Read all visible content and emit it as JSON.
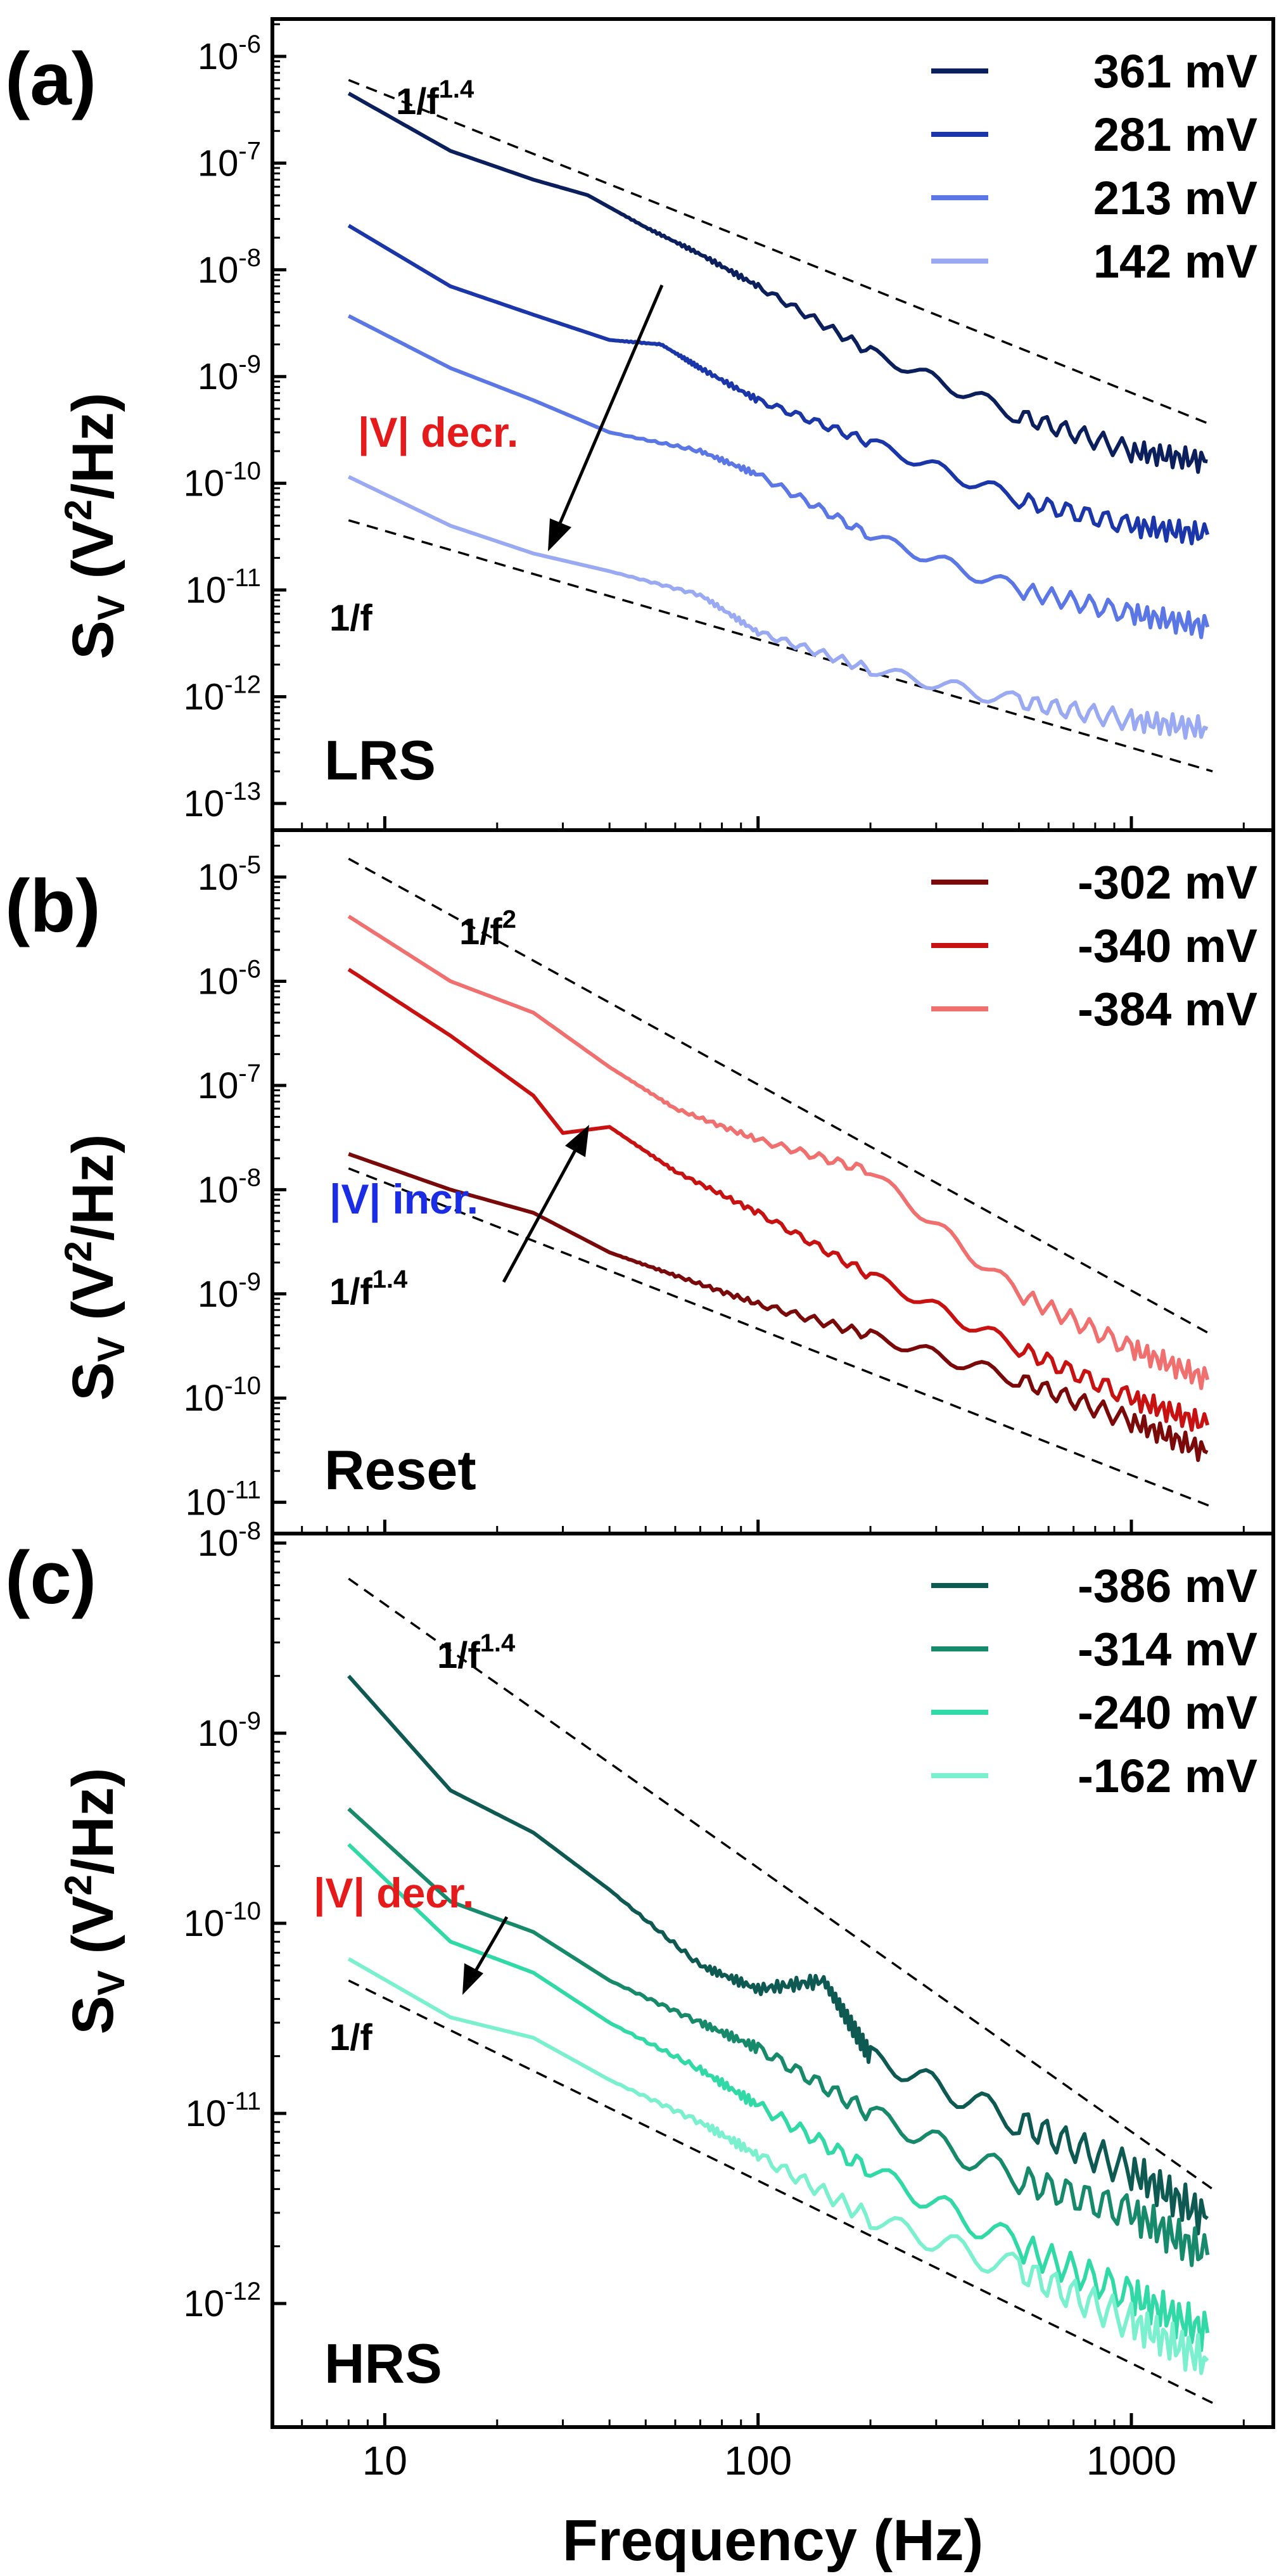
{
  "xlabel": "Frequency (Hz)",
  "xticks": [
    "10",
    "100",
    "1000"
  ],
  "colors": {
    "a": [
      "#0b1f5c",
      "#1a36a8",
      "#5b77e6",
      "#9aaaf2"
    ],
    "b": [
      "#7a0a0a",
      "#c81212",
      "#f07070"
    ],
    "c": [
      "#0e5a52",
      "#168a6a",
      "#30d9a6",
      "#7af0cf"
    ],
    "annot_decr": "#e51a1a",
    "annot_incr": "#1a2de5"
  },
  "panels": [
    {
      "letter": "(a)",
      "ylabel_main": "S",
      "ylabel_sub": "V",
      "ylabel_unit_pre": " (V",
      "ylabel_unit_sup": "2",
      "ylabel_unit_post": "/Hz)",
      "state": "LRS",
      "yticks": [
        {
          "base": "10",
          "exp": "-6"
        },
        {
          "base": "10",
          "exp": "-7"
        },
        {
          "base": "10",
          "exp": "-8"
        },
        {
          "base": "10",
          "exp": "-9"
        },
        {
          "base": "10",
          "exp": "-10"
        },
        {
          "base": "10",
          "exp": "-11"
        },
        {
          "base": "10",
          "exp": "-12"
        },
        {
          "base": "10",
          "exp": "-13"
        }
      ],
      "ref_upper": {
        "base": "1/f",
        "exp": "1.4"
      },
      "ref_lower": {
        "base": "1/f",
        "exp": ""
      },
      "annotation": "|V| decr."
    },
    {
      "letter": "(b)",
      "ylabel_main": "S",
      "ylabel_sub": "V",
      "ylabel_unit_pre": " (V",
      "ylabel_unit_sup": "2",
      "ylabel_unit_post": "/Hz)",
      "state": "Reset",
      "yticks": [
        {
          "base": "10",
          "exp": "-5"
        },
        {
          "base": "10",
          "exp": "-6"
        },
        {
          "base": "10",
          "exp": "-7"
        },
        {
          "base": "10",
          "exp": "-8"
        },
        {
          "base": "10",
          "exp": "-9"
        },
        {
          "base": "10",
          "exp": "-10"
        },
        {
          "base": "10",
          "exp": "-11"
        }
      ],
      "ref_upper": {
        "base": "1/f",
        "exp": "2"
      },
      "ref_lower": {
        "base": "1/f",
        "exp": "1.4"
      },
      "annotation": "|V| incr."
    },
    {
      "letter": "(c)",
      "ylabel_main": "S",
      "ylabel_sub": "V",
      "ylabel_unit_pre": " (V",
      "ylabel_unit_sup": "2",
      "ylabel_unit_post": "/Hz)",
      "state": "HRS",
      "yticks": [
        {
          "base": "10",
          "exp": "-8"
        },
        {
          "base": "10",
          "exp": "-9"
        },
        {
          "base": "10",
          "exp": "-10"
        },
        {
          "base": "10",
          "exp": "-11"
        },
        {
          "base": "10",
          "exp": "-12"
        }
      ],
      "ref_upper": {
        "base": "1/f",
        "exp": "1.4"
      },
      "ref_lower": {
        "base": "1/f",
        "exp": ""
      },
      "annotation": "|V| decr."
    }
  ],
  "chart_data": [
    {
      "type": "line",
      "panel": "(a)",
      "x_scale": "log",
      "y_scale": "log",
      "xlabel": "Frequency (Hz)",
      "ylabel": "SV (V2/Hz)",
      "xlim": [
        5,
        2400
      ],
      "ylim_log10": [
        -13.25,
        -5.65
      ],
      "legend_position": "top-right",
      "series": [
        {
          "name": "361 mV",
          "x": [
            8,
            15,
            25,
            35,
            50,
            70,
            100,
            200,
            500,
            1000,
            1600
          ],
          "y": [
            4.5e-07,
            1.3e-07,
            7e-08,
            5e-08,
            2.5e-08,
            1.4e-08,
            7e-09,
            1.7e-09,
            4.3e-10,
            2e-10,
            1.6e-10
          ]
        },
        {
          "name": "281 mV",
          "x": [
            8,
            15,
            25,
            40,
            55,
            70,
            100,
            200,
            500,
            1000,
            1600
          ],
          "y": [
            2.6e-08,
            7e-09,
            3.8e-09,
            2.2e-09,
            2e-09,
            1.2e-09,
            6e-10,
            2.4e-10,
            7e-11,
            4e-11,
            3.3e-11
          ]
        },
        {
          "name": "213 mV",
          "x": [
            8,
            15,
            25,
            40,
            70,
            100,
            200,
            500,
            1000,
            1600
          ],
          "y": [
            3.7e-09,
            1.2e-09,
            6e-10,
            3e-10,
            2e-10,
            1.2e-10,
            3.2e-11,
            1e-11,
            6e-12,
            4.5e-12
          ]
        },
        {
          "name": "142 mV",
          "x": [
            8,
            15,
            25,
            40,
            70,
            100,
            200,
            500,
            1000,
            1600
          ],
          "y": [
            1.15e-10,
            4e-11,
            2.2e-11,
            1.5e-11,
            9e-12,
            4e-12,
            1.8e-12,
            9e-13,
            6e-13,
            5e-13
          ]
        }
      ],
      "reference_lines": [
        {
          "label": "1/f^1.4",
          "x": [
            8,
            1650
          ],
          "y": [
            6e-07,
            3.5e-10
          ]
        },
        {
          "label": "1/f",
          "x": [
            8,
            1650
          ],
          "y": [
            4.5e-11,
            2e-13
          ]
        }
      ]
    },
    {
      "type": "line",
      "panel": "(b)",
      "x_scale": "log",
      "y_scale": "log",
      "xlabel": "Frequency (Hz)",
      "ylabel": "SV (V2/Hz)",
      "xlim": [
        5,
        2400
      ],
      "ylim_log10": [
        -11.3,
        -4.55
      ],
      "legend_position": "top-right",
      "series": [
        {
          "name": "-302 mV",
          "x": [
            8,
            15,
            25,
            40,
            60,
            100,
            200,
            500,
            1000,
            1600
          ],
          "y": [
            2.2e-08,
            1e-08,
            6e-09,
            2.5e-09,
            1.5e-09,
            8e-10,
            4e-10,
            1.5e-10,
            6e-11,
            3e-11
          ]
        },
        {
          "name": "-340 mV",
          "x": [
            8,
            15,
            25,
            30,
            40,
            60,
            100,
            200,
            500,
            1000,
            1600
          ],
          "y": [
            1.3e-06,
            3e-07,
            8e-08,
            3.5e-08,
            4e-08,
            1.5e-08,
            6e-09,
            1.5e-09,
            3e-10,
            1e-10,
            5.5e-11
          ]
        },
        {
          "name": "-384 mV",
          "x": [
            8,
            15,
            25,
            40,
            60,
            100,
            200,
            500,
            1000,
            1600
          ],
          "y": [
            4.2e-06,
            1e-06,
            5e-07,
            1.5e-07,
            6e-08,
            3e-08,
            1.5e-08,
            1e-09,
            3e-10,
            1.5e-10
          ]
        }
      ],
      "reference_lines": [
        {
          "label": "1/f^2",
          "x": [
            8,
            1650
          ],
          "y": [
            1.5e-05,
            4e-10
          ]
        },
        {
          "label": "1/f^1.4",
          "x": [
            8,
            1650
          ],
          "y": [
            1.6e-08,
            9e-12
          ]
        }
      ]
    },
    {
      "type": "line",
      "panel": "(c)",
      "x_scale": "log",
      "y_scale": "log",
      "xlabel": "Frequency (Hz)",
      "ylabel": "SV (V2/Hz)",
      "xlim": [
        5,
        2400
      ],
      "ylim_log10": [
        -12.65,
        -7.95
      ],
      "legend_position": "top-right",
      "series": [
        {
          "name": "-386 mV",
          "x": [
            8,
            15,
            25,
            40,
            70,
            100,
            150,
            200,
            500,
            1000,
            1600
          ],
          "y": [
            2e-09,
            5e-10,
            3e-10,
            1.5e-10,
            6e-11,
            4.5e-11,
            5e-11,
            2e-11,
            9e-12,
            5e-12,
            2.8e-12
          ]
        },
        {
          "name": "-314 mV",
          "x": [
            8,
            15,
            25,
            40,
            70,
            100,
            200,
            500,
            1000,
            1600
          ],
          "y": [
            4e-10,
            1.3e-10,
            9e-11,
            5e-11,
            3e-11,
            2.2e-11,
            1e-11,
            4.5e-12,
            3e-12,
            1.8e-12
          ]
        },
        {
          "name": "-240 mV",
          "x": [
            8,
            15,
            25,
            40,
            70,
            100,
            200,
            500,
            1000,
            1600
          ],
          "y": [
            2.6e-10,
            8e-11,
            5.5e-11,
            3e-11,
            1.7e-11,
            1.1e-11,
            5e-12,
            2e-12,
            1.1e-12,
            7e-13
          ]
        },
        {
          "name": "-162 mV",
          "x": [
            8,
            15,
            25,
            40,
            70,
            100,
            200,
            500,
            1000,
            1600
          ],
          "y": [
            6.5e-11,
            3.2e-11,
            2.5e-11,
            1.5e-11,
            9e-12,
            6e-12,
            2.8e-12,
            1.5e-12,
            8e-13,
            5e-13
          ]
        }
      ],
      "reference_lines": [
        {
          "label": "1/f^1.4",
          "x": [
            8,
            1650
          ],
          "y": [
            6.5e-09,
            4e-12
          ]
        },
        {
          "label": "1/f",
          "x": [
            8,
            1650
          ],
          "y": [
            5e-11,
            3e-13
          ]
        }
      ]
    }
  ]
}
